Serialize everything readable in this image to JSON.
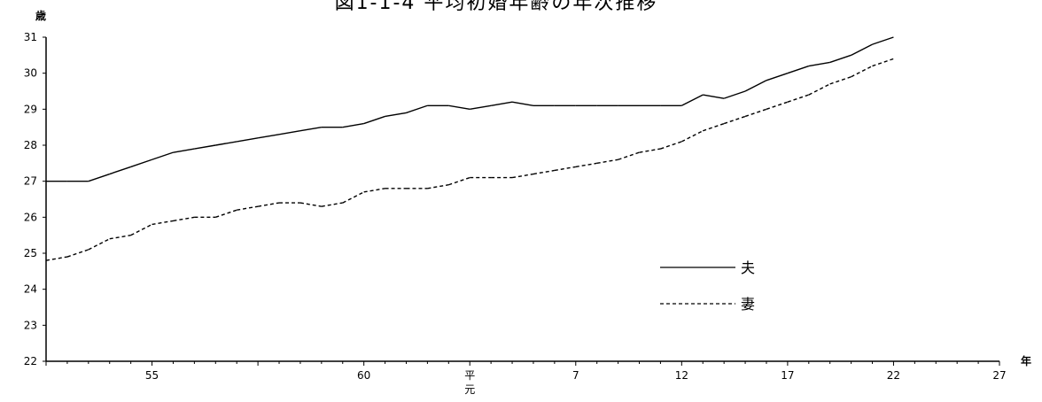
{
  "chart_data": {
    "type": "line",
    "title": "図1-1-4 平均初婚年齢の年次推移",
    "ylabel": "歳",
    "xlabel": "年",
    "ylim": [
      22,
      31
    ],
    "yticks": [
      22,
      23,
      24,
      25,
      26,
      27,
      28,
      29,
      30,
      31
    ],
    "x": [
      1975,
      1976,
      1977,
      1978,
      1979,
      1980,
      1981,
      1982,
      1983,
      1984,
      1985,
      1986,
      1987,
      1988,
      1989,
      1990,
      1991,
      1992,
      1993,
      1994,
      1995,
      1996,
      1997,
      1998,
      1999,
      2000,
      2001,
      2002,
      2003,
      2004,
      2005,
      2006,
      2007,
      2008,
      2009,
      2010,
      2011,
      2012,
      2013,
      2014,
      2015
    ],
    "xticks": [
      {
        "x": 1980,
        "label": "55"
      },
      {
        "x": 1990,
        "label": "60"
      },
      {
        "x": 1995,
        "label": "平",
        "sublabel": "元"
      },
      {
        "x": 2000,
        "label": "7"
      },
      {
        "x": 2005,
        "label": "12"
      },
      {
        "x": 2010,
        "label": "17"
      },
      {
        "x": 2015,
        "label": "22"
      },
      {
        "x": 2020,
        "label": "27"
      }
    ],
    "series": [
      {
        "name": "夫",
        "style": "solid",
        "color": "#000000",
        "values": [
          27.0,
          27.0,
          27.0,
          27.2,
          27.4,
          27.6,
          27.8,
          27.9,
          28.0,
          28.1,
          28.2,
          28.3,
          28.4,
          28.5,
          28.5,
          28.6,
          28.8,
          28.9,
          29.1,
          29.1,
          29.0,
          29.1,
          29.2,
          29.1,
          29.1,
          29.1,
          29.1,
          29.1,
          29.1,
          29.1,
          29.1,
          29.4,
          29.3,
          29.5,
          29.8,
          30.0,
          30.2,
          30.3,
          30.5,
          30.8,
          31.0
        ]
      },
      {
        "name": "妻",
        "style": "dashed",
        "color": "#000000",
        "values": [
          24.8,
          24.9,
          25.1,
          25.4,
          25.5,
          25.8,
          25.9,
          26.0,
          26.0,
          26.2,
          26.3,
          26.4,
          26.4,
          26.3,
          26.4,
          26.7,
          26.8,
          26.8,
          26.8,
          26.9,
          27.1,
          27.1,
          27.1,
          27.2,
          27.3,
          27.4,
          27.5,
          27.6,
          27.8,
          27.9,
          28.1,
          28.4,
          28.6,
          28.8,
          29.0,
          29.2,
          29.4,
          29.7,
          29.9,
          30.2,
          30.4
        ]
      }
    ]
  }
}
